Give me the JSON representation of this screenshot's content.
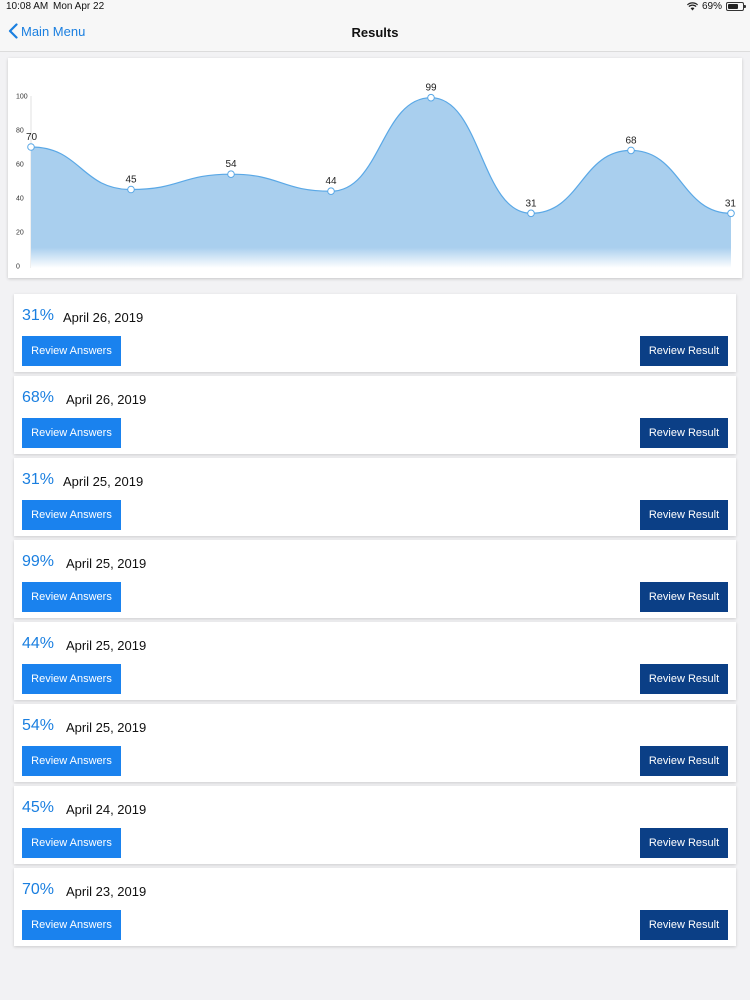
{
  "status_bar": {
    "time": "10:08 AM",
    "date": "Mon Apr 22",
    "battery": "69%",
    "battery_level": 0.69
  },
  "nav": {
    "back_label": "Main Menu",
    "title": "Results"
  },
  "chart_data": {
    "type": "area",
    "values": [
      70,
      45,
      54,
      44,
      99,
      31,
      68,
      31
    ],
    "data_labels": [
      "70",
      "45",
      "54",
      "44",
      "99",
      "31",
      "68",
      "31"
    ],
    "y_ticks": [
      "0",
      "20",
      "40",
      "60",
      "80",
      "100"
    ],
    "ylim": [
      0,
      100
    ],
    "grid": false,
    "fill_color": "#a9cfee",
    "line_color": "#5aa8e6"
  },
  "results": [
    {
      "score": "31%",
      "date": "April 26, 2019",
      "answers_label": "Review Answers",
      "result_label": "Review Result"
    },
    {
      "score": "68%",
      "date": "April 26, 2019",
      "answers_label": "Review Answers",
      "result_label": "Review Result"
    },
    {
      "score": "31%",
      "date": "April 25, 2019",
      "answers_label": "Review Answers",
      "result_label": "Review Result"
    },
    {
      "score": "99%",
      "date": "April 25, 2019",
      "answers_label": "Review Answers",
      "result_label": "Review Result"
    },
    {
      "score": "44%",
      "date": "April 25, 2019",
      "answers_label": "Review Answers",
      "result_label": "Review Result"
    },
    {
      "score": "54%",
      "date": "April 25, 2019",
      "answers_label": "Review Answers",
      "result_label": "Review Result"
    },
    {
      "score": "45%",
      "date": "April 24, 2019",
      "answers_label": "Review Answers",
      "result_label": "Review Result"
    },
    {
      "score": "70%",
      "date": "April 23, 2019",
      "answers_label": "Review Answers",
      "result_label": "Review Result"
    }
  ],
  "colors": {
    "accent": "#1a7fe0",
    "button_primary": "#1a82ee",
    "button_dark": "#0b3f86"
  },
  "icons": {
    "back": "chevron-left-icon",
    "wifi": "wifi-icon",
    "battery": "battery-icon"
  }
}
